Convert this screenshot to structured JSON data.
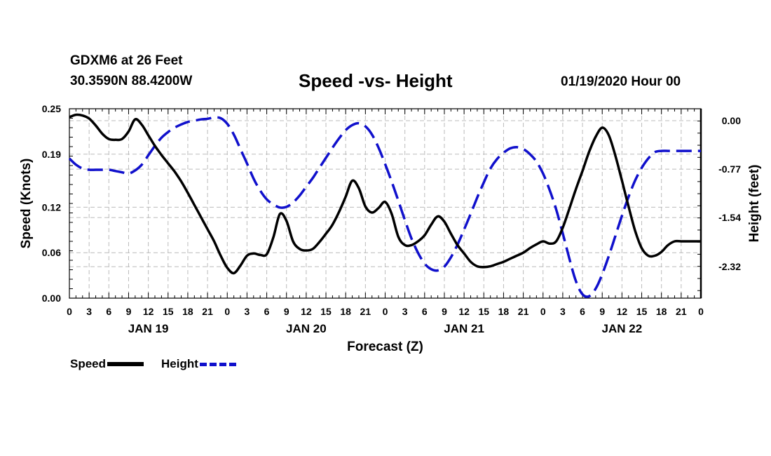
{
  "header": {
    "station": "GDXM6 at 26 Feet",
    "coords": "30.3590N 88.4200W",
    "title": "Speed -vs- Height",
    "datetime": "01/19/2020 Hour 00"
  },
  "legend": {
    "speed_label": "Speed",
    "height_label": "Height"
  },
  "colors": {
    "speed": "#000000",
    "height": "#1010cc",
    "grid": "#bbbbbb"
  },
  "chart_data": {
    "type": "line",
    "title": "Speed -vs- Height",
    "xlabel": "Forecast (Z)",
    "ylabel": "Speed (Knots)",
    "ylabel_right": "Height (feet)",
    "x_range_hours": [
      0,
      96
    ],
    "x_tick_labels": [
      "0",
      "3",
      "6",
      "9",
      "12",
      "15",
      "18",
      "21",
      "0",
      "3",
      "6",
      "9",
      "12",
      "15",
      "18",
      "21",
      "0",
      "3",
      "6",
      "9",
      "12",
      "15",
      "18",
      "21",
      "0",
      "3",
      "6",
      "9",
      "12",
      "15",
      "18",
      "21",
      "0"
    ],
    "date_labels": [
      {
        "label": "JAN 19",
        "hour": 12
      },
      {
        "label": "JAN 20",
        "hour": 36
      },
      {
        "label": "JAN 21",
        "hour": 60
      },
      {
        "label": "JAN 22",
        "hour": 84
      }
    ],
    "y_left": {
      "range": [
        0,
        0.25
      ],
      "ticks": [
        0.0,
        0.06,
        0.12,
        0.19,
        0.25
      ],
      "tick_labels": [
        "0.00",
        "0.06",
        "0.12",
        "0.19",
        "0.25"
      ]
    },
    "y_right": {
      "range": [
        -2.82,
        0.19
      ],
      "ticks": [
        0.0,
        -0.77,
        -1.54,
        -2.32
      ],
      "tick_labels": [
        "0.00",
        "-0.77",
        "-1.54",
        "-2.32"
      ]
    },
    "series": [
      {
        "name": "Speed",
        "axis": "left",
        "style": "solid",
        "x": [
          0,
          1,
          2,
          3,
          4,
          5,
          6,
          7,
          8,
          9,
          10,
          11,
          12,
          13,
          14,
          15,
          16,
          17,
          18,
          19,
          20,
          21,
          22,
          23,
          24,
          25,
          26,
          27,
          28,
          29,
          30,
          31,
          32,
          33,
          34,
          35,
          36,
          37,
          38,
          39,
          40,
          41,
          42,
          43,
          44,
          45,
          46,
          47,
          48,
          49,
          50,
          51,
          52,
          53,
          54,
          55,
          56,
          57,
          58,
          59,
          60,
          61,
          62,
          63,
          64,
          65,
          66,
          67,
          68,
          69,
          70,
          71,
          72,
          73,
          74,
          75,
          76,
          77,
          78,
          79,
          80,
          81,
          82,
          83,
          84,
          85,
          86,
          87,
          88,
          89,
          90,
          91,
          92,
          93,
          94,
          95,
          96
        ],
        "values": [
          0.239,
          0.242,
          0.241,
          0.237,
          0.228,
          0.217,
          0.21,
          0.209,
          0.21,
          0.22,
          0.236,
          0.229,
          0.215,
          0.201,
          0.189,
          0.178,
          0.167,
          0.154,
          0.139,
          0.123,
          0.107,
          0.091,
          0.075,
          0.056,
          0.04,
          0.033,
          0.043,
          0.056,
          0.059,
          0.057,
          0.058,
          0.08,
          0.111,
          0.102,
          0.075,
          0.065,
          0.063,
          0.065,
          0.074,
          0.085,
          0.097,
          0.114,
          0.134,
          0.155,
          0.145,
          0.121,
          0.113,
          0.119,
          0.127,
          0.111,
          0.081,
          0.07,
          0.07,
          0.075,
          0.083,
          0.097,
          0.108,
          0.101,
          0.085,
          0.07,
          0.059,
          0.048,
          0.042,
          0.041,
          0.042,
          0.045,
          0.048,
          0.052,
          0.056,
          0.06,
          0.066,
          0.071,
          0.075,
          0.072,
          0.075,
          0.093,
          0.118,
          0.144,
          0.168,
          0.193,
          0.213,
          0.225,
          0.215,
          0.188,
          0.155,
          0.121,
          0.089,
          0.066,
          0.056,
          0.056,
          0.061,
          0.07,
          0.075,
          0.075,
          0.075,
          0.075,
          0.075
        ]
      },
      {
        "name": "Height",
        "axis": "right",
        "style": "dashed",
        "x": [
          0,
          1,
          2,
          3,
          4,
          5,
          6,
          7,
          8,
          9,
          10,
          11,
          12,
          13,
          14,
          15,
          16,
          17,
          18,
          19,
          20,
          21,
          22,
          23,
          24,
          25,
          26,
          27,
          28,
          29,
          30,
          31,
          32,
          33,
          34,
          35,
          36,
          37,
          38,
          39,
          40,
          41,
          42,
          43,
          44,
          45,
          46,
          47,
          48,
          49,
          50,
          51,
          52,
          53,
          54,
          55,
          56,
          57,
          58,
          59,
          60,
          61,
          62,
          63,
          64,
          65,
          66,
          67,
          68,
          69,
          70,
          71,
          72,
          73,
          74,
          75,
          76,
          77,
          78,
          79,
          80,
          81,
          82,
          83,
          84,
          85,
          86,
          87,
          88,
          89,
          90,
          91,
          92,
          93,
          94,
          95,
          96
        ],
        "values": [
          -0.6,
          -0.7,
          -0.76,
          -0.78,
          -0.78,
          -0.78,
          -0.78,
          -0.8,
          -0.82,
          -0.84,
          -0.79,
          -0.7,
          -0.55,
          -0.4,
          -0.27,
          -0.18,
          -0.11,
          -0.06,
          -0.02,
          0.0,
          0.02,
          0.03,
          0.05,
          0.04,
          -0.05,
          -0.22,
          -0.45,
          -0.68,
          -0.92,
          -1.11,
          -1.25,
          -1.33,
          -1.38,
          -1.37,
          -1.3,
          -1.19,
          -1.05,
          -0.91,
          -0.75,
          -0.59,
          -0.43,
          -0.28,
          -0.15,
          -0.07,
          -0.04,
          -0.09,
          -0.22,
          -0.43,
          -0.69,
          -0.97,
          -1.27,
          -1.58,
          -1.87,
          -2.1,
          -2.27,
          -2.36,
          -2.38,
          -2.32,
          -2.17,
          -1.97,
          -1.73,
          -1.48,
          -1.22,
          -0.98,
          -0.76,
          -0.61,
          -0.51,
          -0.44,
          -0.42,
          -0.45,
          -0.53,
          -0.65,
          -0.84,
          -1.1,
          -1.41,
          -1.79,
          -2.19,
          -2.55,
          -2.76,
          -2.79,
          -2.67,
          -2.44,
          -2.15,
          -1.83,
          -1.51,
          -1.21,
          -0.95,
          -0.75,
          -0.6,
          -0.5,
          -0.48,
          -0.48,
          -0.48,
          -0.48,
          -0.48,
          -0.48,
          -0.48
        ]
      }
    ]
  }
}
